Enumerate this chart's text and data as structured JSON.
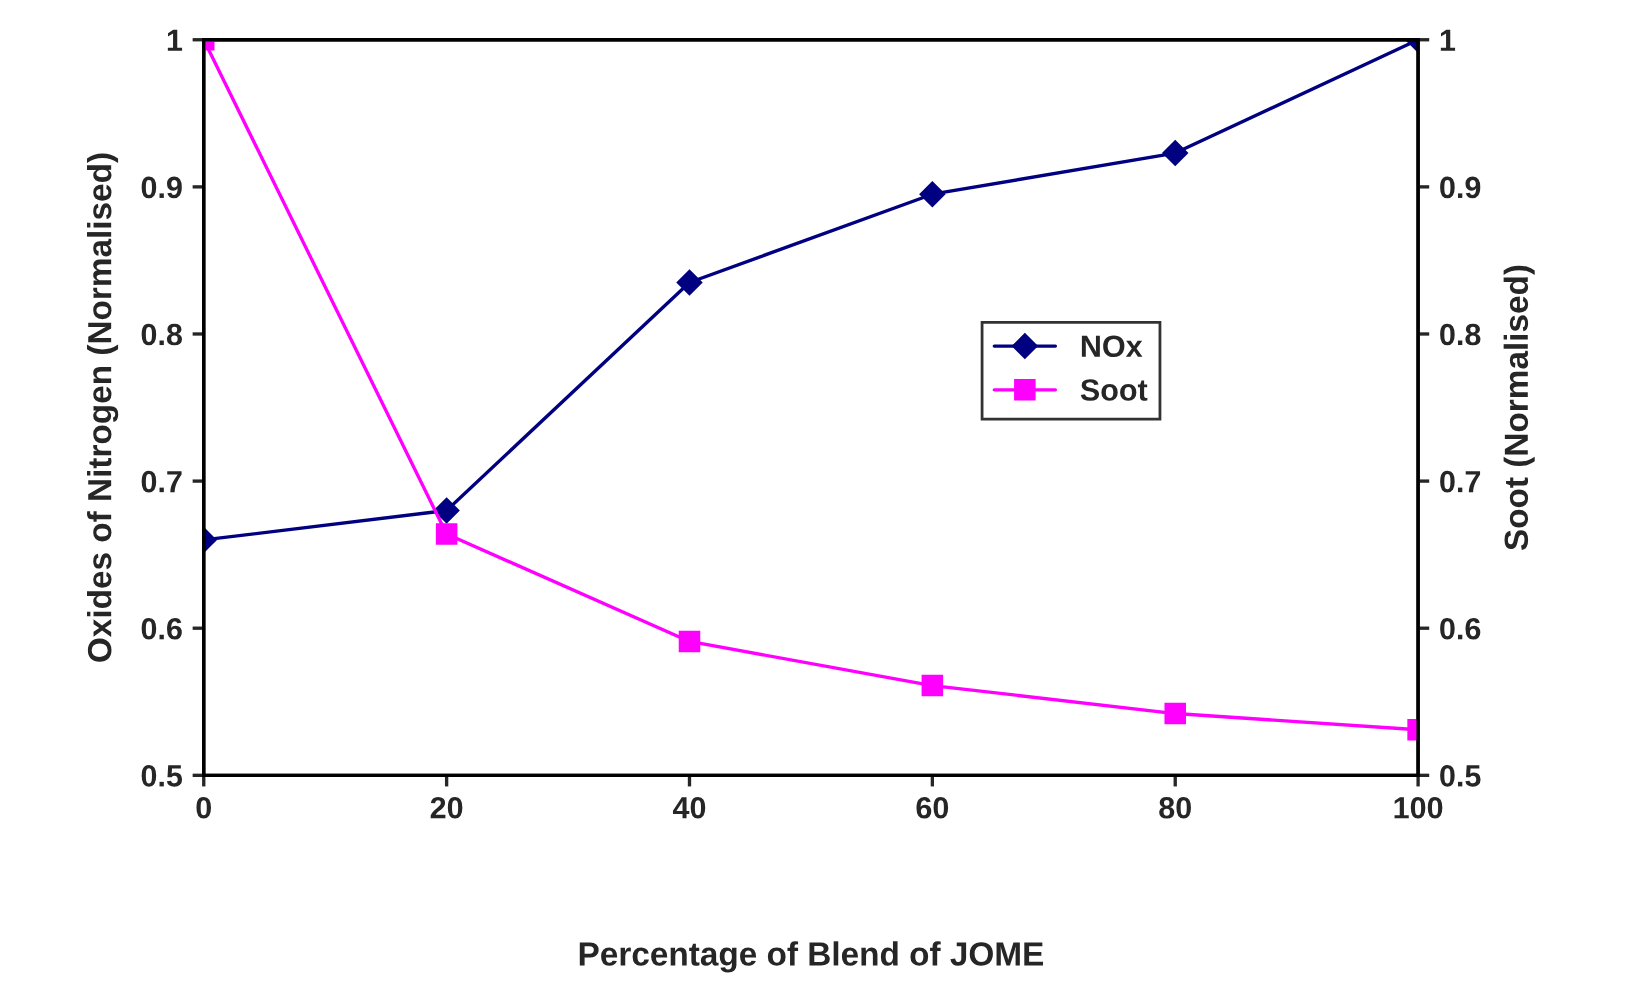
{
  "chart_data": {
    "type": "line",
    "xlabel": "Percentage of Blend of JOME",
    "ylabel": "Oxides of Nitrogen (Normalised)",
    "y2label": "Soot (Normalised)",
    "x": [
      0,
      20,
      40,
      60,
      80,
      100
    ],
    "series": [
      {
        "name": "NOx",
        "color": "#000080",
        "marker": "diamond",
        "values": [
          0.66,
          0.68,
          0.835,
          0.895,
          0.923,
          1
        ]
      },
      {
        "name": "Soot",
        "color": "#ff00ff",
        "marker": "square",
        "axis": "y2",
        "values": [
          1,
          0.664,
          0.591,
          0.561,
          0.542,
          0.531
        ]
      }
    ],
    "xlim": [
      0,
      100
    ],
    "xticks": [
      0,
      20,
      40,
      60,
      80,
      100
    ],
    "ylim": [
      0.5,
      1
    ],
    "yticks": [
      0.5,
      0.6,
      0.7,
      0.8,
      0.9,
      1
    ],
    "y2lim": [
      0.5,
      1
    ],
    "y2ticks": [
      0.5,
      0.6,
      0.7,
      0.8,
      0.9,
      1
    ],
    "grid": false,
    "legend": "center right",
    "line_style": "solid"
  }
}
